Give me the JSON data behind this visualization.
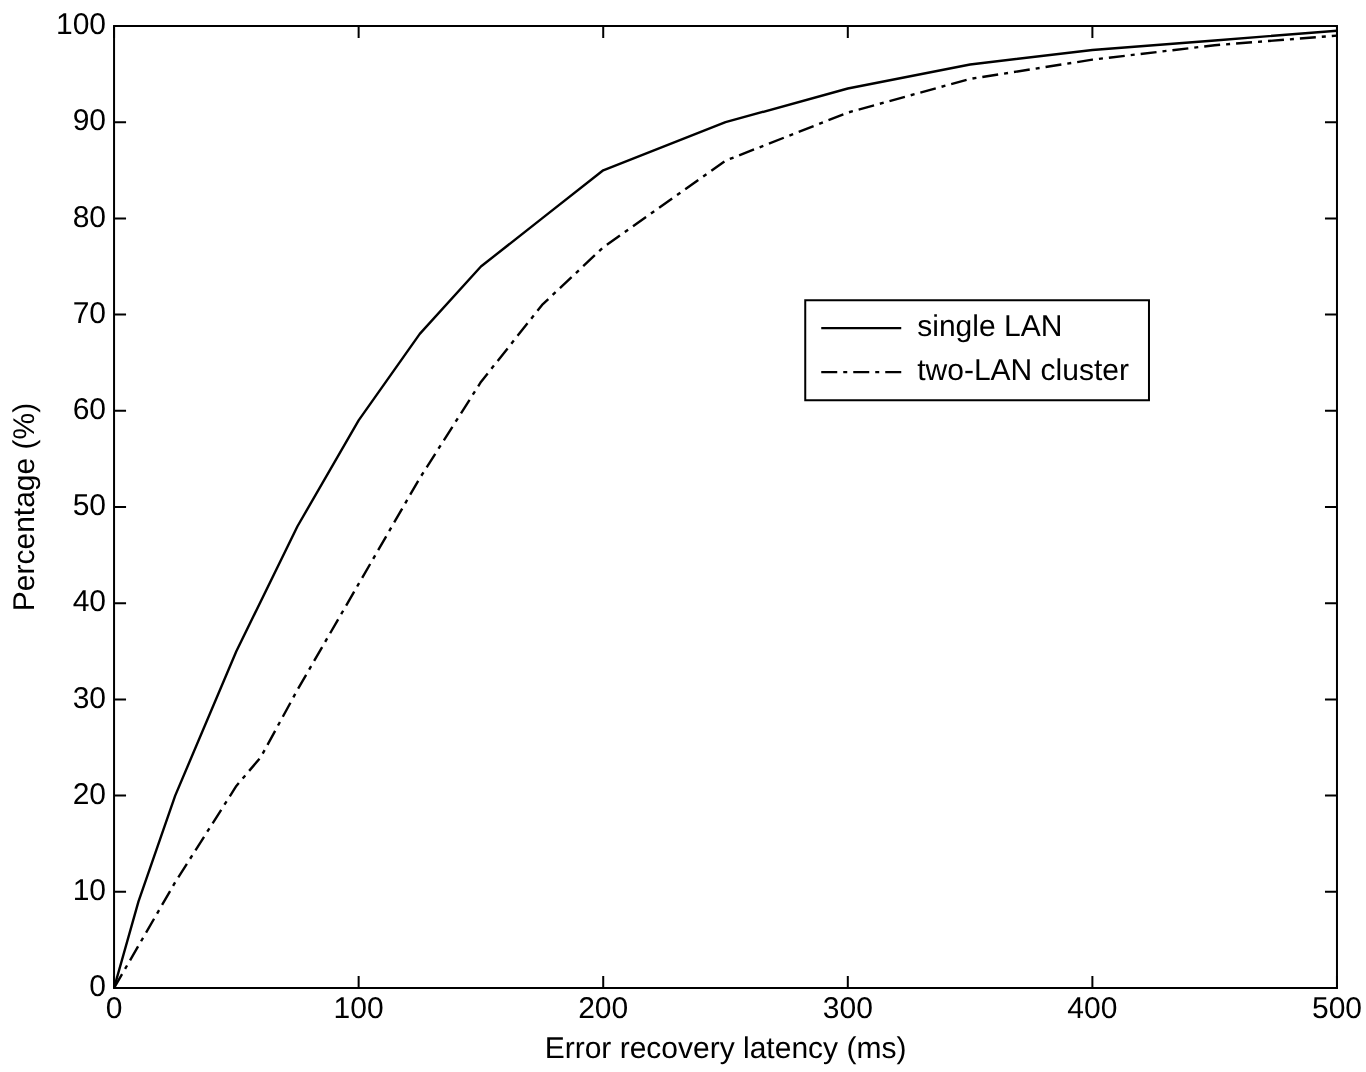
{
  "chart_data": {
    "type": "line",
    "xlabel": "Error recovery latency (ms)",
    "ylabel": "Percentage (%)",
    "xlim": [
      0,
      500
    ],
    "xticks": [
      0,
      100,
      200,
      300,
      400,
      500
    ],
    "ylim": [
      0,
      100
    ],
    "yticks": [
      0,
      10,
      20,
      30,
      40,
      50,
      60,
      70,
      80,
      90,
      100
    ],
    "grid": false,
    "legend": "right",
    "marker": "none",
    "series": [
      {
        "name": "single LAN",
        "color": "#000000",
        "line_style": "solid",
        "x": [
          0,
          10,
          25,
          50,
          75,
          100,
          125,
          150,
          175,
          200,
          250,
          300,
          350,
          400,
          450,
          500
        ],
        "values": [
          0,
          9,
          20,
          35,
          48,
          59,
          68,
          75,
          80,
          85,
          90,
          93.5,
          96,
          97.5,
          98.5,
          99.5
        ]
      },
      {
        "name": "two-LAN cluster",
        "color": "#000000",
        "line_style": "dashdot",
        "x": [
          0,
          25,
          50,
          60,
          75,
          100,
          125,
          150,
          175,
          200,
          250,
          300,
          350,
          400,
          450,
          500
        ],
        "values": [
          0,
          11,
          21,
          24,
          31,
          42,
          53,
          63,
          71,
          77,
          86,
          91,
          94.5,
          96.5,
          98,
          99
        ]
      }
    ]
  }
}
